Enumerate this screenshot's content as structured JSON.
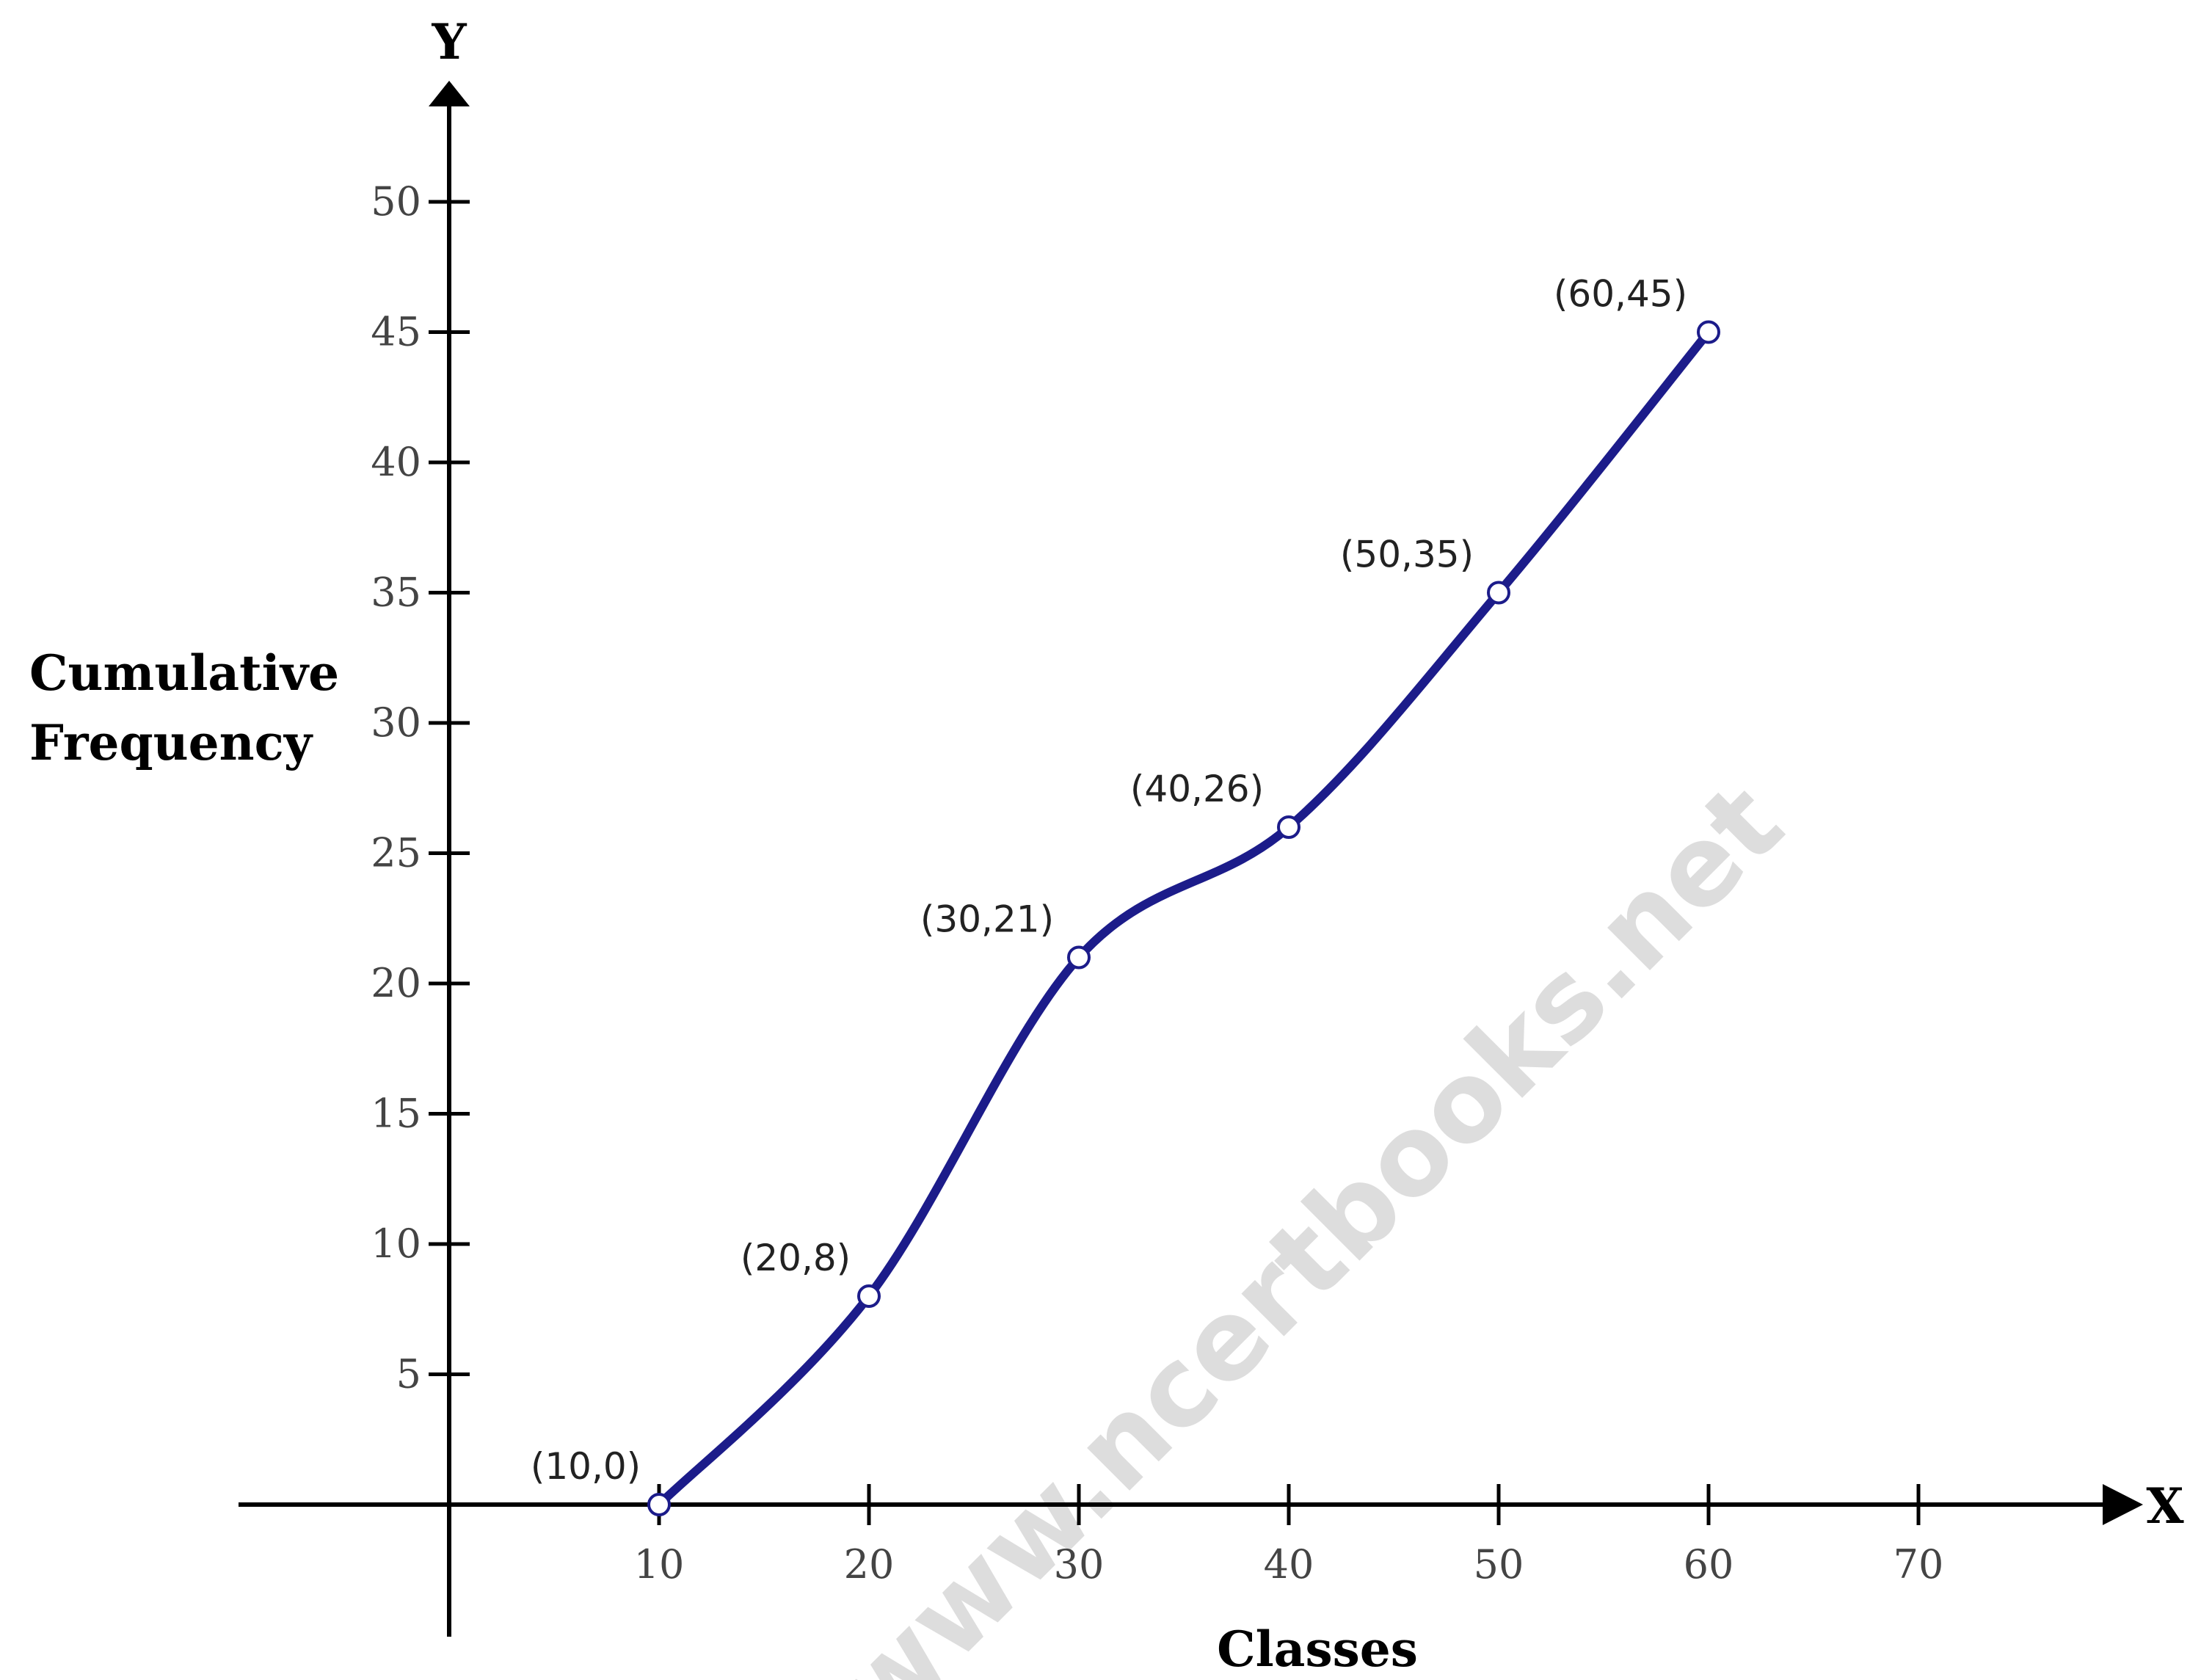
{
  "chart_data": {
    "type": "line",
    "axis_x_letter": "X",
    "axis_y_letter": "Y",
    "xlabel": "Classes",
    "ylabel": "Cumulative Frequency",
    "ylabel_lines": [
      "Cumulative",
      "Frequency"
    ],
    "xlim": [
      0,
      80
    ],
    "ylim": [
      0,
      55
    ],
    "x_ticks": [
      10,
      20,
      30,
      40,
      50,
      60,
      70
    ],
    "y_ticks": [
      5,
      10,
      15,
      20,
      25,
      30,
      35,
      40,
      45,
      50
    ],
    "grid": false,
    "line_color": "#1c1c8a",
    "marker_edge_color": "#1c1c8a",
    "series": [
      {
        "x": [
          10,
          20,
          30,
          40,
          50,
          60
        ],
        "y": [
          0,
          8,
          21,
          26,
          35,
          45
        ],
        "labels": [
          "(10,0)",
          "(20,8)",
          "(30,21)",
          "(40,26)",
          "(50,35)",
          "(60,45)"
        ]
      }
    ],
    "watermark": "www.ncertbooks.net"
  }
}
